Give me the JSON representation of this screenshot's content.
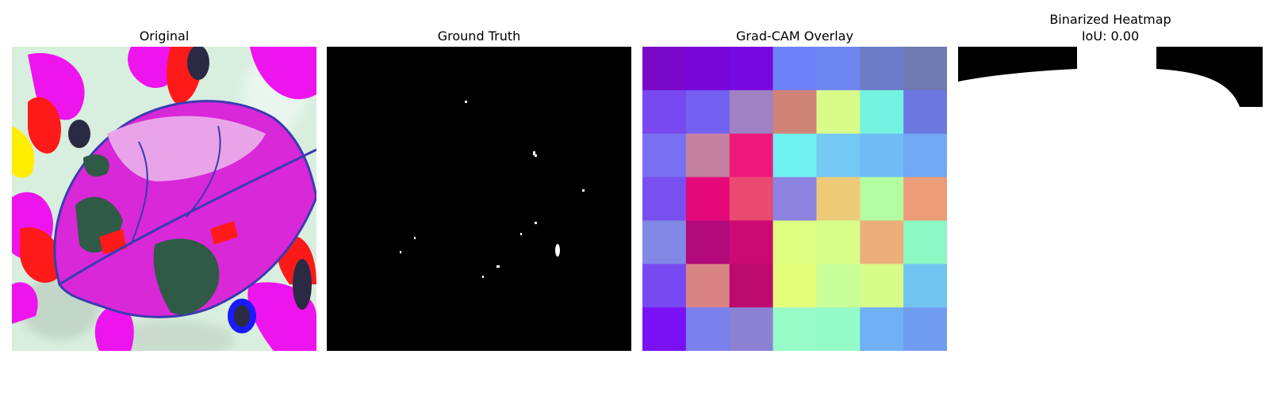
{
  "panels": [
    {
      "title": "Original",
      "image": "original-leaf-image"
    },
    {
      "title": "Ground Truth",
      "image": "ground-truth-mask"
    },
    {
      "title": "Grad-CAM Overlay",
      "image": "gradcam-overlay",
      "grid_colors": [
        [
          "#7a08c8",
          "#7806d8",
          "#7808e0",
          "#6e82f8",
          "#6e86f0",
          "#6c7cc8",
          "#6e7ab0"
        ],
        [
          "#7848f0",
          "#7460f0",
          "#a082c4",
          "#d08478",
          "#d8fc8a",
          "#74f4e0",
          "#6c78e0"
        ],
        [
          "#7870f0",
          "#c482a0",
          "#ee1878",
          "#70f2f0",
          "#74c8f4",
          "#70bcf4",
          "#70a8f4"
        ],
        [
          "#7850f0",
          "#e4087a",
          "#ea4a72",
          "#8c82e0",
          "#ecca78",
          "#b4fca2",
          "#ec9c78"
        ],
        [
          "#8088e4",
          "#b20a7a",
          "#cc0a74",
          "#deff82",
          "#d8fe8a",
          "#ecae7a",
          "#8cf8c4"
        ],
        [
          "#7848f0",
          "#d88484",
          "#bc0a6e",
          "#e4ff7a",
          "#c8fe98",
          "#d8fc8a",
          "#70c4f0"
        ],
        [
          "#7a10f4",
          "#7a80ec",
          "#8c82d4",
          "#98fcc8",
          "#94fac8",
          "#70b0f4",
          "#709cf0"
        ]
      ]
    },
    {
      "title_line1": "Binarized Heatmap",
      "title_line2": "IoU: 0.00",
      "image": "binarized-heatmap"
    }
  ]
}
